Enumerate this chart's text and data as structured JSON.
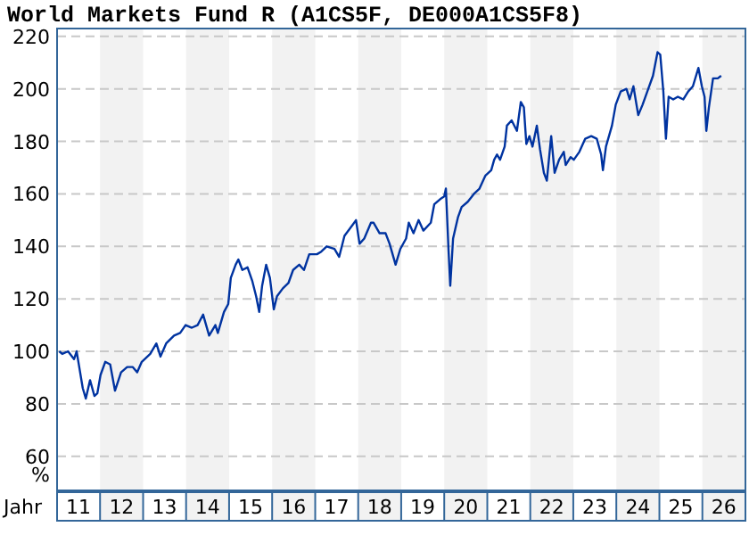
{
  "chart_data": {
    "type": "line",
    "title": "World Markets Fund R (A1CS5F, DE000A1CS5F8)",
    "xlabel": "Jahr",
    "ylabel": "%",
    "xlim": [
      "2011-01-01",
      "2027-01-01"
    ],
    "ylim": [
      47,
      223
    ],
    "yticks": [
      60,
      80,
      100,
      120,
      140,
      160,
      180,
      200,
      220
    ],
    "xticks": [
      {
        "value": "2011-07-02",
        "label": "11"
      },
      {
        "value": "2012-07-02",
        "label": "12"
      },
      {
        "value": "2013-07-02",
        "label": "13"
      },
      {
        "value": "2014-07-02",
        "label": "14"
      },
      {
        "value": "2015-07-02",
        "label": "15"
      },
      {
        "value": "2016-07-02",
        "label": "16"
      },
      {
        "value": "2017-07-02",
        "label": "17"
      },
      {
        "value": "2018-07-02",
        "label": "18"
      },
      {
        "value": "2019-07-02",
        "label": "19"
      },
      {
        "value": "2020-07-02",
        "label": "20"
      },
      {
        "value": "2021-07-02",
        "label": "21"
      },
      {
        "value": "2022-07-02",
        "label": "22"
      },
      {
        "value": "2023-07-02",
        "label": "23"
      },
      {
        "value": "2024-07-02",
        "label": "24"
      },
      {
        "value": "2025-07-02",
        "label": "25"
      },
      {
        "value": "2026-07-02",
        "label": "26"
      }
    ],
    "grid": "y",
    "line_style": "solid",
    "bands": [
      {
        "axis": "x",
        "from": "2012-01-01",
        "to": "2013-01-01",
        "color": "#f2f2f2"
      },
      {
        "axis": "x",
        "from": "2014-01-01",
        "to": "2015-01-01",
        "color": "#f2f2f2"
      },
      {
        "axis": "x",
        "from": "2016-01-01",
        "to": "2017-01-01",
        "color": "#f2f2f2"
      },
      {
        "axis": "x",
        "from": "2018-01-01",
        "to": "2019-01-01",
        "color": "#f2f2f2"
      },
      {
        "axis": "x",
        "from": "2020-01-01",
        "to": "2021-01-01",
        "color": "#f2f2f2"
      },
      {
        "axis": "x",
        "from": "2022-01-01",
        "to": "2023-01-01",
        "color": "#f2f2f2"
      },
      {
        "axis": "x",
        "from": "2024-01-01",
        "to": "2025-01-01",
        "color": "#f2f2f2"
      },
      {
        "axis": "x",
        "from": "2026-01-01",
        "to": "2027-01-01",
        "color": "#f2f2f2"
      }
    ],
    "series": [
      {
        "color": "#0033a0",
        "x": [
          "2011-01-19",
          "2011-02-14",
          "2011-04-04",
          "2011-05-25",
          "2011-06-16",
          "2011-07-12",
          "2011-08-07",
          "2011-09-02",
          "2011-10-08",
          "2011-11-14",
          "2011-12-09",
          "2012-01-05",
          "2012-02-14",
          "2012-03-27",
          "2012-05-07",
          "2012-06-27",
          "2012-08-18",
          "2012-10-05",
          "2012-11-11",
          "2012-12-20",
          "2013-03-02",
          "2013-04-23",
          "2013-05-28",
          "2013-07-15",
          "2013-09-20",
          "2013-11-11",
          "2013-12-27",
          "2014-02-18",
          "2014-04-08",
          "2014-05-25",
          "2014-07-15",
          "2014-09-06",
          "2014-09-27",
          "2014-11-18",
          "2014-12-24",
          "2015-01-15",
          "2015-02-25",
          "2015-03-20",
          "2015-04-23",
          "2015-06-06",
          "2015-07-15",
          "2015-08-18",
          "2015-09-13",
          "2015-10-08",
          "2015-11-11",
          "2015-12-13",
          "2016-01-15",
          "2016-02-11",
          "2016-04-01",
          "2016-05-18",
          "2016-06-27",
          "2016-08-18",
          "2016-09-27",
          "2016-11-11",
          "2017-01-15",
          "2017-02-21",
          "2017-04-08",
          "2017-06-13",
          "2017-07-23",
          "2017-09-06",
          "2017-11-11",
          "2017-12-13",
          "2018-01-12",
          "2018-02-21",
          "2018-04-19",
          "2018-05-11",
          "2018-07-01",
          "2018-08-21",
          "2018-09-24",
          "2018-11-14",
          "2018-12-24",
          "2019-02-11",
          "2019-03-06",
          "2019-04-15",
          "2019-05-28",
          "2019-07-08",
          "2019-09-09",
          "2019-10-08",
          "2019-11-28",
          "2020-01-01",
          "2020-01-15",
          "2020-02-07",
          "2020-02-21",
          "2020-03-16",
          "2020-04-26",
          "2020-05-28",
          "2020-07-19",
          "2020-09-09",
          "2020-10-26",
          "2020-12-16",
          "2021-02-03",
          "2021-02-28",
          "2021-03-24",
          "2021-04-19",
          "2021-05-28",
          "2021-06-16",
          "2021-07-26",
          "2021-09-09",
          "2021-10-12",
          "2021-11-07",
          "2021-11-28",
          "2021-12-24",
          "2022-01-19",
          "2022-02-25",
          "2022-03-24",
          "2022-04-26",
          "2022-05-21",
          "2022-06-27",
          "2022-07-26",
          "2022-09-02",
          "2022-10-12",
          "2022-10-28",
          "2022-12-09",
          "2023-01-05",
          "2023-02-21",
          "2023-04-12",
          "2023-06-02",
          "2023-07-19",
          "2023-08-25",
          "2023-09-09",
          "2023-10-05",
          "2023-11-25",
          "2023-12-27",
          "2024-02-07",
          "2024-03-27",
          "2024-04-23",
          "2024-05-25",
          "2024-07-05",
          "2024-08-11",
          "2024-09-20",
          "2024-11-07",
          "2024-12-16",
          "2025-01-08",
          "2025-02-03",
          "2025-02-25",
          "2025-03-20",
          "2025-04-28",
          "2025-06-06",
          "2025-07-23",
          "2025-09-02",
          "2025-10-12",
          "2025-11-28",
          "2025-12-27",
          "2026-01-19",
          "2026-02-03",
          "2026-02-25",
          "2026-04-01",
          "2026-05-11",
          "2026-06-09"
        ],
        "values": [
          100,
          99,
          100,
          97,
          100,
          93,
          86,
          82,
          89,
          83,
          84,
          91,
          96,
          95,
          85,
          92,
          94,
          94,
          92,
          96,
          99,
          103,
          98,
          103,
          106,
          107,
          110,
          109,
          110,
          114,
          106,
          110,
          107,
          115,
          118,
          128,
          133,
          135,
          131,
          132,
          127,
          121,
          115,
          125,
          133,
          128,
          116,
          121,
          124,
          126,
          131,
          133,
          131,
          137,
          137,
          138,
          140,
          139,
          136,
          144,
          148,
          150,
          141,
          143,
          149,
          149,
          145,
          145,
          141,
          133,
          139,
          143,
          149,
          145,
          150,
          146,
          149,
          156,
          158,
          159,
          162,
          138,
          125,
          143,
          151,
          155,
          157,
          160,
          162,
          167,
          169,
          173,
          175,
          173,
          178,
          186,
          188,
          184,
          195,
          193,
          179,
          182,
          178,
          186,
          177,
          168,
          165,
          182,
          168,
          173,
          176,
          171,
          174,
          173,
          176,
          181,
          182,
          181,
          175,
          169,
          178,
          186,
          194,
          199,
          200,
          196,
          201,
          190,
          194,
          199,
          205,
          214,
          213,
          199,
          181,
          197,
          196,
          197,
          196,
          199,
          201,
          208,
          201,
          197,
          184,
          193,
          204,
          204,
          205
        ]
      }
    ]
  }
}
